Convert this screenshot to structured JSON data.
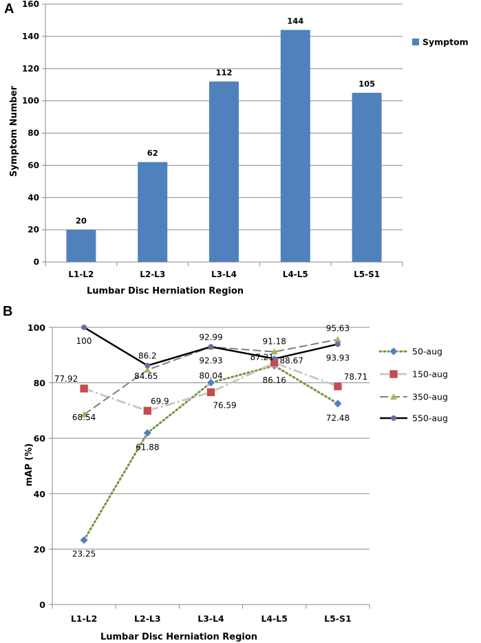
{
  "chart_data": [
    {
      "panel": "A",
      "type": "bar",
      "categories": [
        "L1-L2",
        "L2-L3",
        "L3-L4",
        "L4-L5",
        "L5-S1"
      ],
      "series": [
        {
          "name": "Symptom",
          "values": [
            20,
            62,
            112,
            144,
            105
          ],
          "labels": [
            "20",
            "62",
            "112",
            "144",
            "105"
          ],
          "color": "#4f81bd"
        }
      ],
      "xlabel": "Lumbar Disc Herniation Region",
      "ylabel": "Symptom Number",
      "ylim": [
        0,
        160
      ],
      "yticks": [
        0,
        20,
        40,
        60,
        80,
        100,
        120,
        140,
        160
      ],
      "grid": true,
      "legend": "right"
    },
    {
      "panel": "B",
      "type": "line",
      "categories": [
        "L1-L2",
        "L2-L3",
        "L3-L4",
        "L4-L5",
        "L5-S1"
      ],
      "series": [
        {
          "name": "50-aug",
          "values": [
            23.25,
            61.88,
            80.04,
            86.16,
            72.48
          ],
          "labels": [
            "23.25",
            "61.88",
            "80.04",
            "86.16",
            "72.48"
          ],
          "color": "#4f81bd",
          "line_color": "#76923c",
          "dash": "2,4",
          "marker": "diamond"
        },
        {
          "name": "150-aug",
          "values": [
            77.92,
            69.9,
            76.59,
            87.21,
            78.71
          ],
          "labels": [
            "77.92",
            "69.9",
            "76.59",
            "87.21",
            "78.71"
          ],
          "color": "#c0504d",
          "line_color": "#c8c8c8",
          "dash": "14,4,3,4",
          "marker": "square"
        },
        {
          "name": "350-aug",
          "values": [
            68.54,
            84.65,
            92.93,
            91.18,
            95.63
          ],
          "labels": [
            "68.54",
            "84.65",
            "92.93",
            "91.18",
            "95.63"
          ],
          "color": "#9bbb59",
          "line_color": "#7f7f7f",
          "dash": "12,5",
          "marker": "triangle"
        },
        {
          "name": "550-aug",
          "values": [
            100,
            86.2,
            92.99,
            88.67,
            93.93
          ],
          "labels": [
            "100",
            "86.2",
            "92.99",
            "88.67",
            "93.93"
          ],
          "color": "#8064a2",
          "line_color": "#000000",
          "dash": "",
          "marker": "circle"
        }
      ],
      "xlabel": "Lumbar Disc Herniation Region",
      "ylabel": "mAP (%)",
      "ylim": [
        0,
        100
      ],
      "yticks": [
        0,
        20,
        40,
        60,
        80,
        100
      ],
      "grid": true,
      "legend": "right"
    }
  ],
  "panels": {
    "a": "A",
    "b": "B"
  }
}
